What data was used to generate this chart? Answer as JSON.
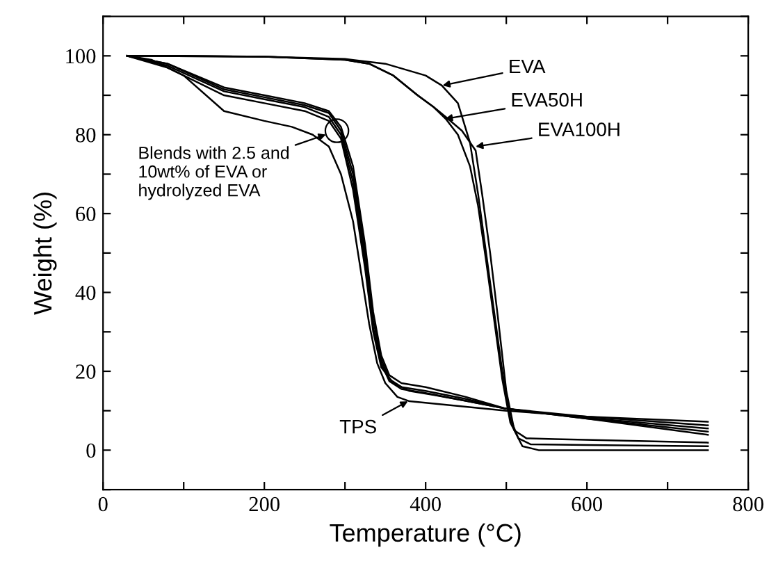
{
  "chart_data": {
    "type": "line",
    "xlabel": "Temperature (°C)",
    "ylabel": "Weight (%)",
    "xlim": [
      0,
      800
    ],
    "ylim": [
      -10,
      110
    ],
    "xticks": [
      0,
      {
        "value": 100,
        "label": null
      },
      200,
      {
        "value": 300,
        "label": null
      },
      400,
      {
        "value": 500,
        "label": null
      },
      600,
      {
        "value": 700,
        "label": null
      },
      800
    ],
    "yticks": [
      {
        "value": -10,
        "label": null
      },
      0,
      {
        "value": 10,
        "label": null
      },
      20,
      {
        "value": 30,
        "label": null
      },
      40,
      {
        "value": 50,
        "label": null
      },
      60,
      {
        "value": 70,
        "label": null
      },
      80,
      {
        "value": 90,
        "label": null
      },
      100,
      {
        "value": 110,
        "label": null
      }
    ],
    "grid": false,
    "legend": false,
    "marker": "none",
    "line_style": "solid",
    "series": [
      {
        "color": "#000000",
        "x": [
          30,
          100,
          200,
          300,
          350,
          400,
          420,
          440,
          455,
          465,
          475,
          485,
          495,
          505,
          515,
          530,
          600,
          750
        ],
        "values": [
          100,
          100,
          99.8,
          99.2,
          98,
          95,
          92.5,
          88,
          78,
          65,
          50,
          35,
          20,
          8,
          3,
          1.5,
          1.3,
          1.0
        ]
      },
      {
        "color": "#000000",
        "x": [
          30,
          200,
          300,
          330,
          360,
          390,
          410,
          425,
          440,
          455,
          465,
          475,
          485,
          495,
          505,
          520,
          540,
          750
        ],
        "values": [
          100,
          99.8,
          99,
          98,
          95,
          90,
          87,
          84,
          80,
          72,
          62,
          48,
          33,
          18,
          7,
          1,
          0,
          0
        ]
      },
      {
        "color": "#000000",
        "x": [
          30,
          200,
          300,
          330,
          360,
          390,
          410,
          425,
          445,
          462,
          470,
          480,
          490,
          500,
          510,
          525,
          560,
          750
        ],
        "values": [
          100,
          99.8,
          99,
          98,
          95,
          90,
          87,
          84.5,
          81,
          76,
          65,
          50,
          33,
          15,
          5,
          3,
          2.8,
          1.9
        ]
      },
      {
        "color": "#000000",
        "x": [
          30,
          60,
          100,
          150,
          200,
          234,
          260,
          280,
          295,
          310,
          320,
          330,
          340,
          350,
          365,
          380,
          450,
          500,
          600,
          750
        ],
        "values": [
          100,
          99,
          95,
          86,
          83.5,
          82,
          80,
          77,
          70,
          58,
          45,
          32,
          22,
          17,
          13.5,
          12.4,
          11,
          10,
          8.5,
          7.2
        ]
      },
      {
        "color": "#000000",
        "x": [
          30,
          80,
          150,
          200,
          250,
          280,
          295,
          310,
          325,
          335,
          345,
          355,
          370,
          400,
          450,
          500,
          600,
          750
        ],
        "values": [
          100,
          98,
          92,
          90,
          88,
          86,
          82,
          72,
          52,
          35,
          24,
          19,
          17,
          16,
          13.5,
          10.5,
          8,
          4.7
        ]
      },
      {
        "color": "#000000",
        "x": [
          30,
          80,
          150,
          200,
          250,
          280,
          295,
          310,
          325,
          335,
          345,
          355,
          370,
          400,
          450,
          500,
          600,
          750
        ],
        "values": [
          100,
          98,
          91.5,
          89.5,
          87.5,
          85.5,
          81,
          70,
          50,
          33,
          23,
          18,
          16,
          15,
          13,
          10.5,
          8,
          3.9
        ]
      },
      {
        "color": "#000000",
        "x": [
          30,
          80,
          150,
          200,
          250,
          280,
          295,
          310,
          325,
          335,
          345,
          355,
          370,
          400,
          450,
          500,
          600,
          750
        ],
        "values": [
          100,
          97.5,
          91,
          89,
          87,
          84.5,
          80,
          68,
          48,
          31,
          22,
          17.5,
          15.5,
          14.5,
          12.5,
          10.5,
          8.2,
          5.5
        ]
      },
      {
        "color": "#000000",
        "x": [
          30,
          80,
          150,
          200,
          250,
          280,
          295,
          310,
          325,
          335,
          345,
          360,
          380,
          410,
          450,
          500,
          600,
          750
        ],
        "values": [
          100,
          97,
          90,
          88,
          86,
          83.5,
          79,
          66,
          46,
          30,
          21,
          17,
          15,
          14,
          12.5,
          10.5,
          8.5,
          6.3
        ]
      }
    ],
    "annotations": [
      {
        "text": "EVA",
        "x": 421,
        "y": 92.5
      },
      {
        "text": "EVA50H",
        "x": 424,
        "y": 84
      },
      {
        "text": "EVA100H",
        "x": 462,
        "y": 77
      },
      {
        "text": "TPS",
        "x": 378,
        "y": 12.4
      },
      {
        "text": "Blends with 2.5 and\n10wt% of EVA or\nhydrolyzed EVA",
        "x": 290,
        "y": 81
      }
    ]
  }
}
